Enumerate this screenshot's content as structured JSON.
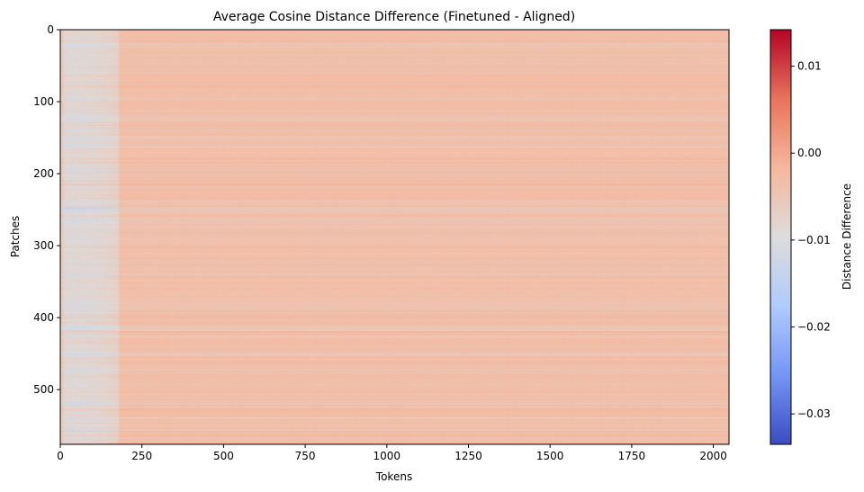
{
  "chart_data": {
    "type": "heatmap",
    "title": "Average Cosine Distance Difference (Finetuned - Aligned)",
    "xlabel": "Tokens",
    "ylabel": "Patches",
    "xlim": [
      0,
      2048
    ],
    "ylim": [
      576,
      0
    ],
    "x_ticks": [
      0,
      250,
      500,
      750,
      1000,
      1250,
      1500,
      1750,
      2000
    ],
    "y_ticks": [
      0,
      100,
      200,
      300,
      400,
      500
    ],
    "x_tick_labels": [
      "0",
      "250",
      "500",
      "750",
      "1000",
      "1250",
      "1500",
      "1750",
      "2000"
    ],
    "y_tick_labels": [
      "0",
      "100",
      "200",
      "300",
      "400",
      "500"
    ],
    "colormap": "coolwarm",
    "colormap_stops": [
      "#3b4cc0",
      "#7396f5",
      "#b0cbfc",
      "#dddcdc",
      "#f6b79c",
      "#e7745b",
      "#b40426"
    ],
    "colorbar": {
      "label": "Distance Difference",
      "vmin": -0.0335,
      "vmax": 0.0142,
      "ticks": [
        0.01,
        0.0,
        -0.01,
        -0.02,
        -0.03
      ],
      "tick_labels": [
        "0.01",
        "0.00",
        "−0.01",
        "−0.02",
        "−0.03"
      ]
    },
    "dominant_value": -0.0035,
    "dominant_value_range": [
      -0.005,
      -0.002
    ],
    "low_region_tokens": [
      0,
      180
    ],
    "low_region_value": -0.009,
    "grid": false
  }
}
